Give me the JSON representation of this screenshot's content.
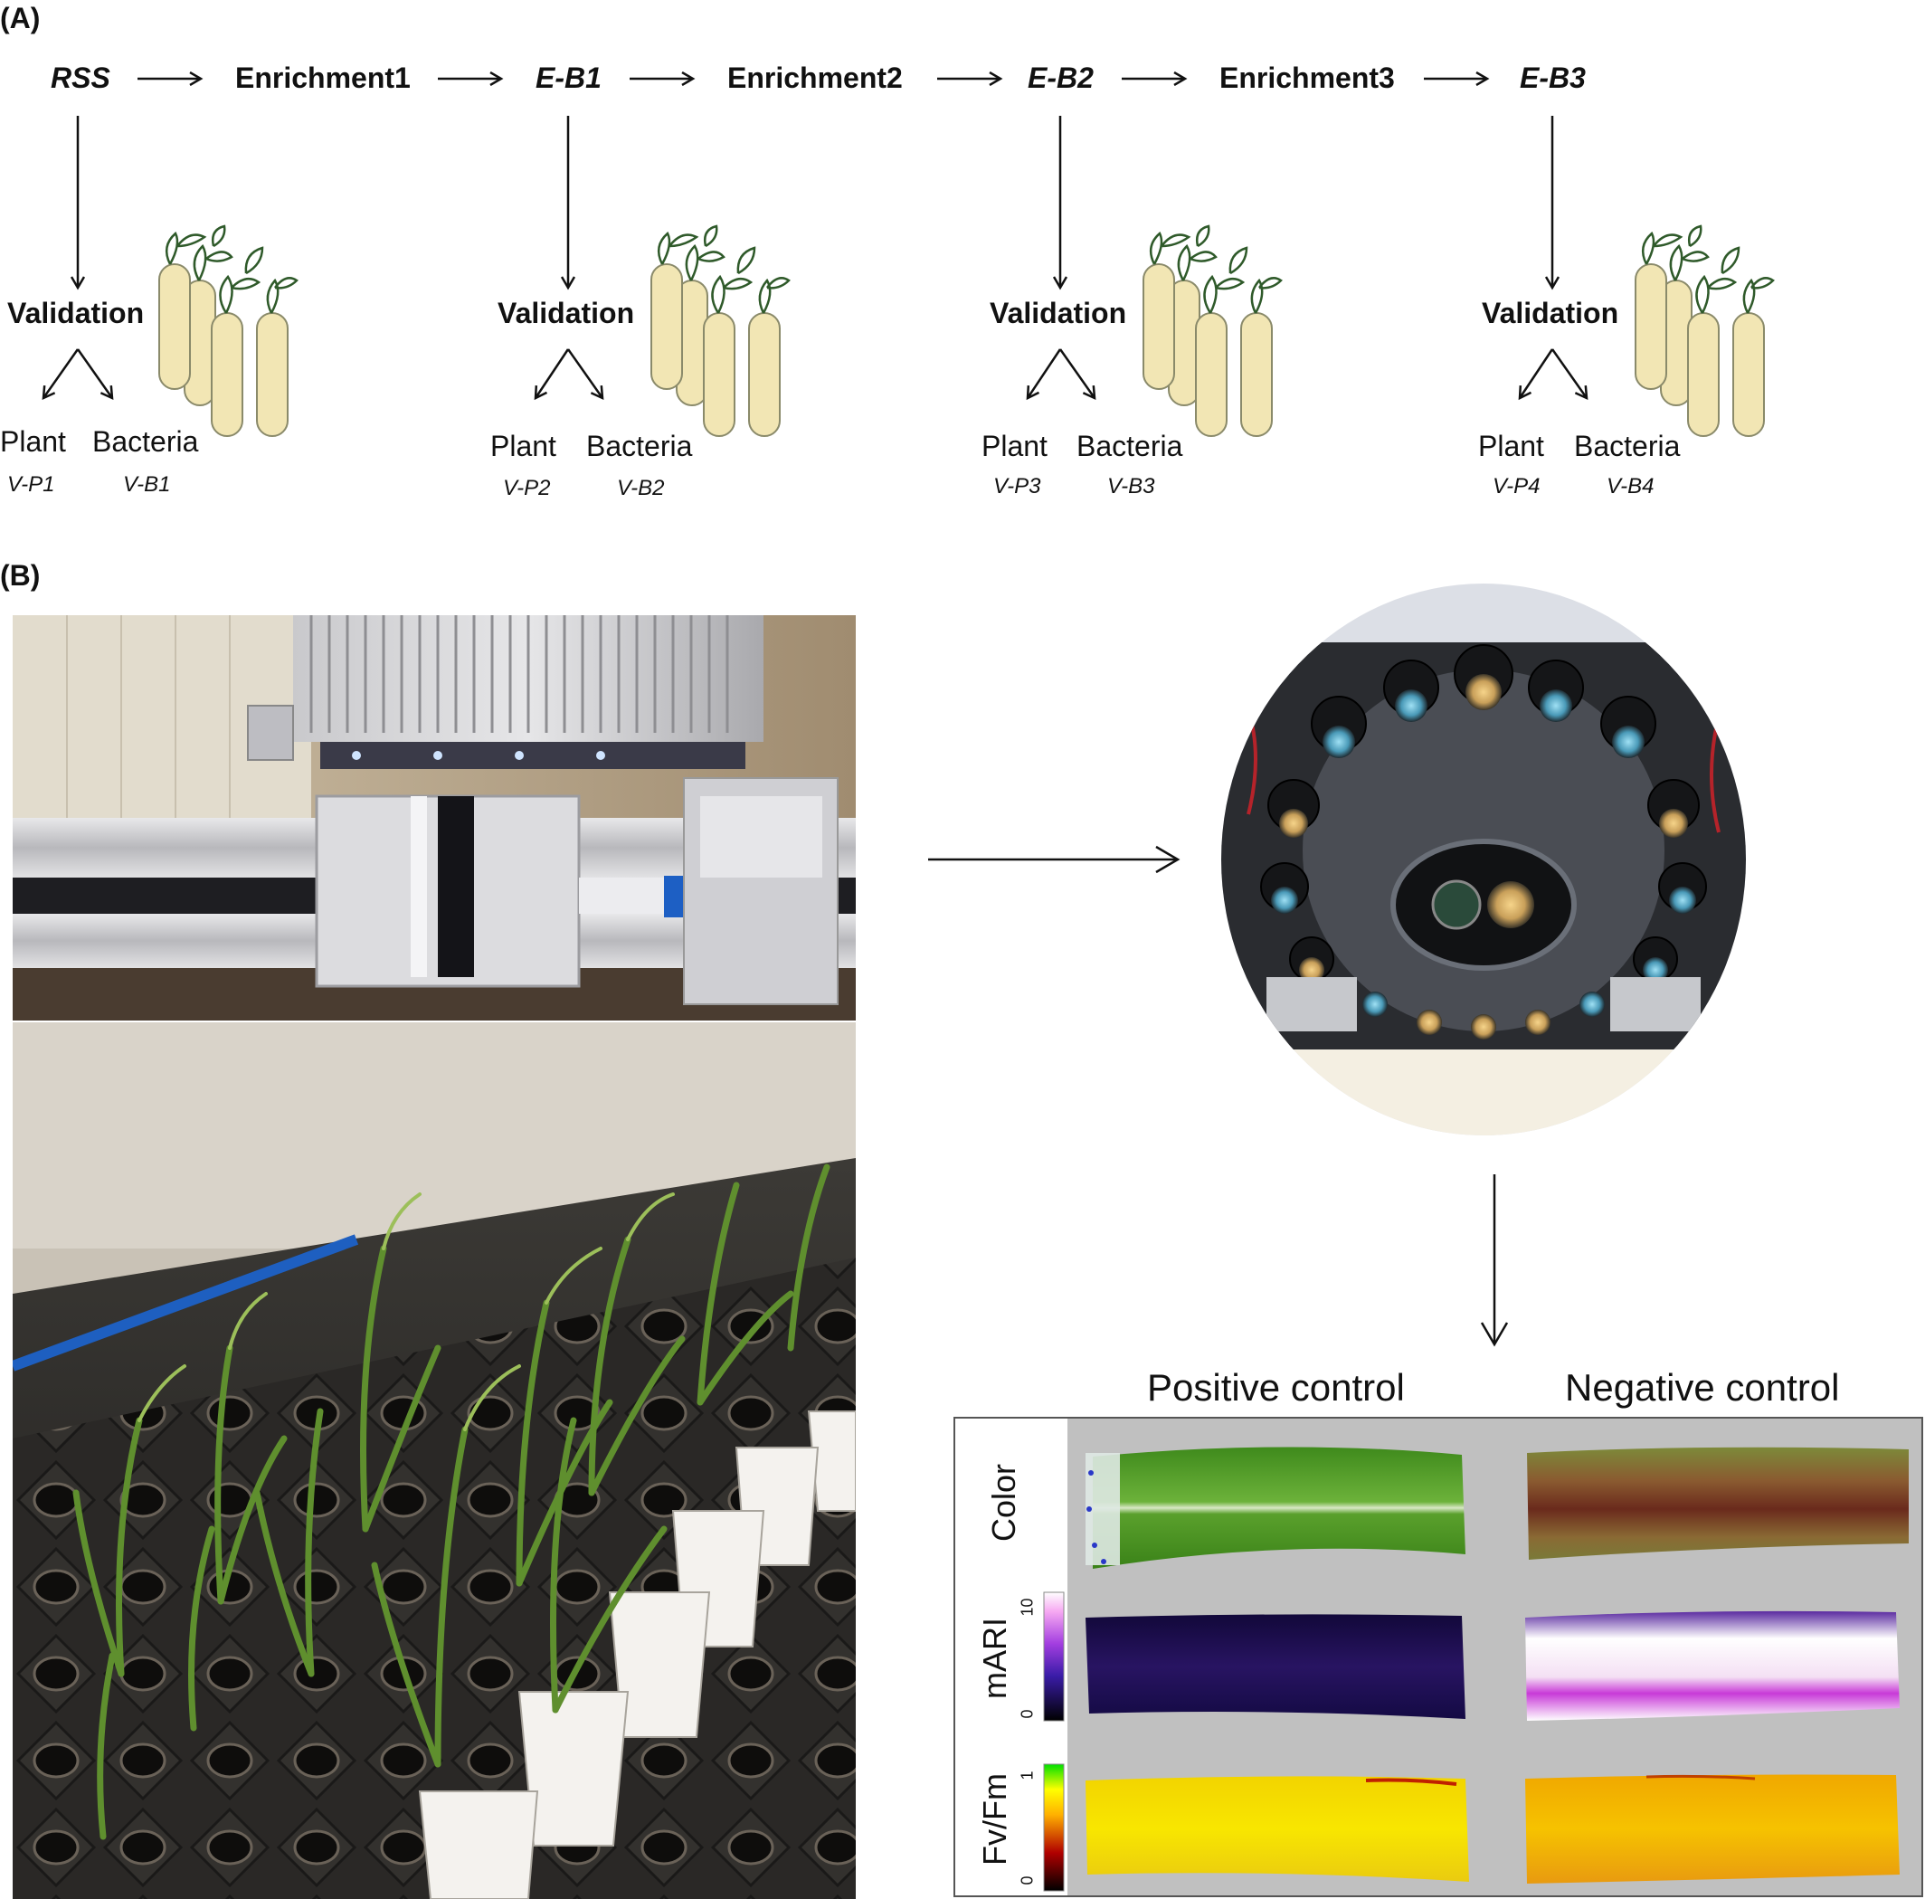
{
  "panel_a": {
    "label": "(A)",
    "flow": [
      "RSS",
      "Enrichment1",
      "E-B1",
      "Enrichment2",
      "E-B2",
      "Enrichment3",
      "E-B3"
    ],
    "validation_label": "Validation",
    "plant_label": "Plant",
    "bacteria_label": "Bacteria",
    "groups": [
      {
        "plant_code": "V-P1",
        "bacteria_code": "V-B1"
      },
      {
        "plant_code": "V-P2",
        "bacteria_code": "V-B2"
      },
      {
        "plant_code": "V-P3",
        "bacteria_code": "V-B3"
      },
      {
        "plant_code": "V-P4",
        "bacteria_code": "V-B4"
      }
    ],
    "colors": {
      "tube_fill": "#f2e6b4",
      "tube_stroke": "#8a8a6a",
      "sprout": "#2f5a2a"
    }
  },
  "panel_b": {
    "label": "(B)",
    "photos": [
      "gantry-scanner-photo",
      "maize-seedlings-photo",
      "camera-array-photo"
    ],
    "columns": [
      "Positive control",
      "Negative control"
    ],
    "rows": [
      {
        "label": "Color"
      },
      {
        "label": "mARI",
        "scale_min": "0",
        "scale_max": "10"
      },
      {
        "label": "Fv/Fm",
        "scale_min": "0",
        "scale_max": "1"
      }
    ],
    "colors": {
      "image_bg": "#c0c0c0",
      "leaf_green": "#4e9a26",
      "leaf_brown": "#7a5a2c",
      "mari_dark": "#1c0f4a",
      "fvfm_yellow": "#f2d400"
    }
  }
}
